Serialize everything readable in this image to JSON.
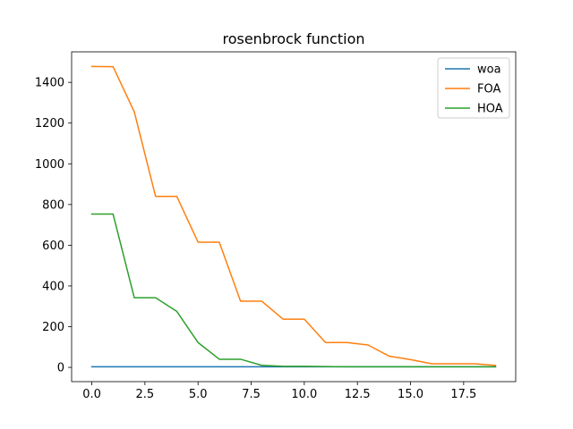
{
  "chart_data": {
    "type": "line",
    "title": "rosenbrock function",
    "xlabel": "",
    "ylabel": "",
    "x": [
      0,
      1,
      2,
      3,
      4,
      5,
      6,
      7,
      8,
      9,
      10,
      11,
      12,
      13,
      14,
      15,
      16,
      17,
      18,
      19
    ],
    "xlim": [
      -0.95,
      19.95
    ],
    "ylim": [
      -70,
      1550
    ],
    "xticks": [
      0.0,
      2.5,
      5.0,
      7.5,
      10.0,
      12.5,
      15.0,
      17.5
    ],
    "xtick_labels": [
      "0.0",
      "2.5",
      "5.0",
      "7.5",
      "10.0",
      "12.5",
      "15.0",
      "17.5"
    ],
    "yticks": [
      0,
      200,
      400,
      600,
      800,
      1000,
      1200,
      1400
    ],
    "ytick_labels": [
      "0",
      "200",
      "400",
      "600",
      "800",
      "1000",
      "1200",
      "1400"
    ],
    "grid": false,
    "legend_position": "top-right",
    "series": [
      {
        "name": "woa",
        "color": "#1f77b4",
        "values": [
          3,
          3,
          3,
          3,
          3,
          3,
          3,
          3,
          3,
          3,
          3,
          3,
          3,
          3,
          3,
          3,
          3,
          3,
          3,
          3
        ]
      },
      {
        "name": "FOA",
        "color": "#ff7f0e",
        "values": [
          1478,
          1477,
          1255,
          840,
          840,
          615,
          615,
          325,
          325,
          237,
          237,
          122,
          122,
          110,
          55,
          38,
          18,
          18,
          18,
          10
        ]
      },
      {
        "name": "HOA",
        "color": "#2ca02c",
        "values": [
          753,
          753,
          342,
          342,
          275,
          122,
          40,
          40,
          10,
          5,
          5,
          4,
          3,
          3,
          3,
          3,
          3,
          3,
          3,
          3
        ]
      }
    ]
  }
}
